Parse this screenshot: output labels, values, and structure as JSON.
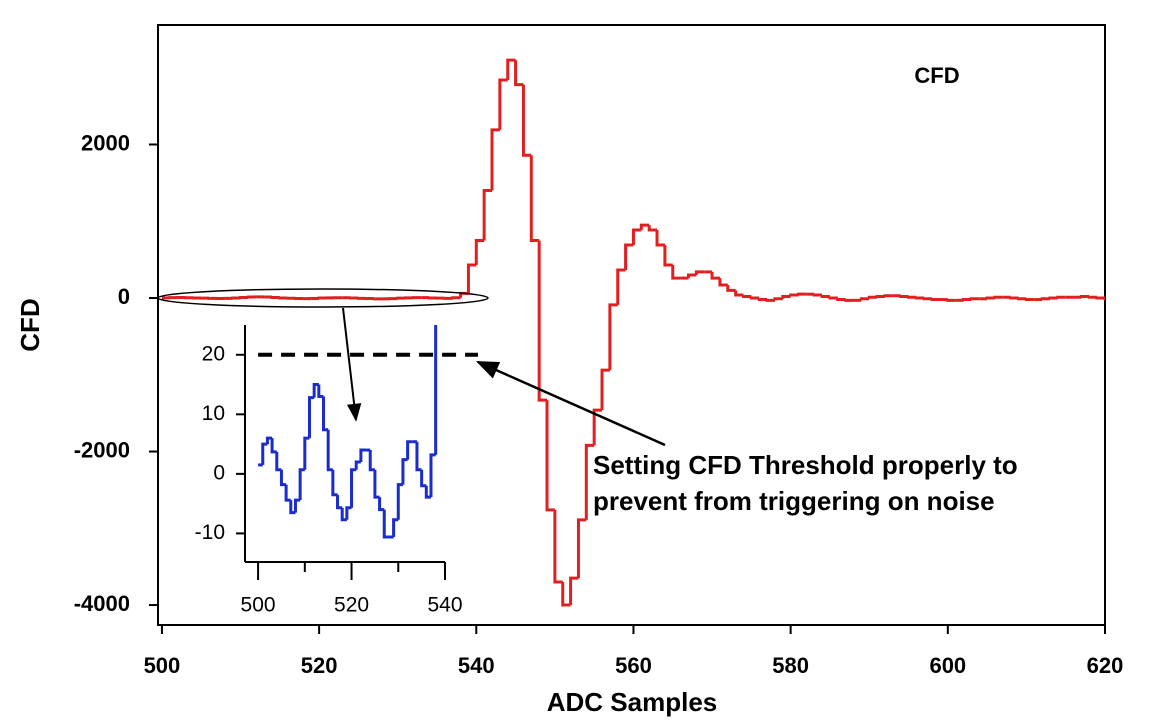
{
  "chart_data": [
    {
      "type": "step",
      "title": "CFD",
      "x_label": "ADC Samples",
      "y_label": "CFD",
      "annotation": [
        "Setting CFD Threshold properly to",
        "prevent from triggering on noise"
      ],
      "xlim": [
        499.5,
        620
      ],
      "ylim": [
        -4260,
        3557
      ],
      "xticks": [
        500,
        520,
        540,
        560,
        580,
        600,
        620
      ],
      "yticks": [
        -4000,
        -2000,
        0,
        2000
      ],
      "series": [
        {
          "color": "#e02020",
          "x": [
            500,
            501,
            502,
            503,
            504,
            505,
            506,
            507,
            508,
            509,
            510,
            511,
            512,
            513,
            514,
            515,
            516,
            517,
            518,
            519,
            520,
            521,
            522,
            523,
            524,
            525,
            526,
            527,
            528,
            529,
            530,
            531,
            532,
            533,
            534,
            535,
            536,
            537,
            538,
            539,
            540,
            541,
            542,
            543,
            544,
            545,
            546,
            547,
            548,
            549,
            550,
            551,
            552,
            553,
            554,
            555,
            556,
            557,
            558,
            559,
            560,
            561,
            562,
            563,
            564,
            565,
            566,
            567,
            568,
            569,
            570,
            571,
            572,
            573,
            574,
            575,
            576,
            577,
            578,
            579,
            580,
            581,
            582,
            583,
            584,
            585,
            586,
            587,
            588,
            589,
            590,
            591,
            592,
            593,
            594,
            595,
            596,
            597,
            598,
            599,
            600,
            601,
            602,
            603,
            604,
            605,
            606,
            607,
            608,
            609,
            610,
            611,
            612,
            613,
            614,
            615,
            616,
            617,
            618,
            619,
            620
          ],
          "values": [
            1.5,
            5,
            6,
            3.7,
            0.7,
            -1.8,
            -4.4,
            -6.5,
            -4.4,
            0.7,
            6,
            12.8,
            15,
            13,
            7.4,
            0.7,
            -3.5,
            -5.7,
            -7.7,
            -5.7,
            0.7,
            2,
            4,
            4,
            0.7,
            -3.9,
            -6,
            -10.6,
            -10.6,
            -7.7,
            -1.8,
            2.4,
            5.4,
            5.4,
            0.7,
            -2,
            -3.9,
            3.2,
            60,
            430,
            750,
            1400,
            2190,
            2840,
            3100,
            2780,
            1860,
            750,
            -1330,
            -2760,
            -3700,
            -4000,
            -3650,
            -2890,
            -1920,
            -1460,
            -940,
            -90,
            365,
            690,
            886,
            950,
            886,
            690,
            430,
            260,
            260,
            300,
            340,
            340,
            260,
            170,
            100,
            40,
            20,
            0,
            -20,
            -30,
            -10,
            20,
            40,
            50,
            50,
            40,
            20,
            0,
            -20,
            -30,
            -30,
            -10,
            10,
            20,
            30,
            30,
            20,
            10,
            0,
            -10,
            -20,
            -20,
            -30,
            -30,
            -20,
            -10,
            -10,
            0,
            10,
            10,
            0,
            -10,
            -20,
            -20,
            -10,
            0,
            10,
            10,
            10,
            20,
            10,
            0,
            -10
          ]
        }
      ]
    },
    {
      "type": "step",
      "xlim": [
        497.2,
        540
      ],
      "ylim": [
        -14.8,
        25
      ],
      "xticks": [
        500,
        520,
        540
      ],
      "xminorticks": [
        510,
        530
      ],
      "yticks": [
        -10,
        0,
        10,
        20
      ],
      "threshold": 20,
      "series": [
        {
          "color": "#1a2ccc",
          "x": [
            500,
            501,
            502,
            503,
            504,
            505,
            506,
            507,
            508,
            509,
            510,
            511,
            512,
            513,
            514,
            515,
            516,
            517,
            518,
            519,
            520,
            521,
            522,
            523,
            524,
            525,
            526,
            527,
            528,
            529,
            530,
            531,
            532,
            533,
            534,
            535,
            536,
            537,
            538
          ],
          "values": [
            1.5,
            5,
            6,
            3.7,
            0.7,
            -1.8,
            -4.4,
            -6.5,
            -4.4,
            0.7,
            6,
            12.8,
            15,
            13,
            7.4,
            0.7,
            -3.5,
            -5.7,
            -7.7,
            -5.7,
            0.7,
            2,
            4,
            4,
            0.7,
            -3.9,
            -6,
            -10.6,
            -10.6,
            -7.7,
            -1.8,
            2.4,
            5.4,
            5.4,
            0.7,
            -2,
            -3.9,
            3.2,
            60
          ]
        }
      ]
    }
  ]
}
